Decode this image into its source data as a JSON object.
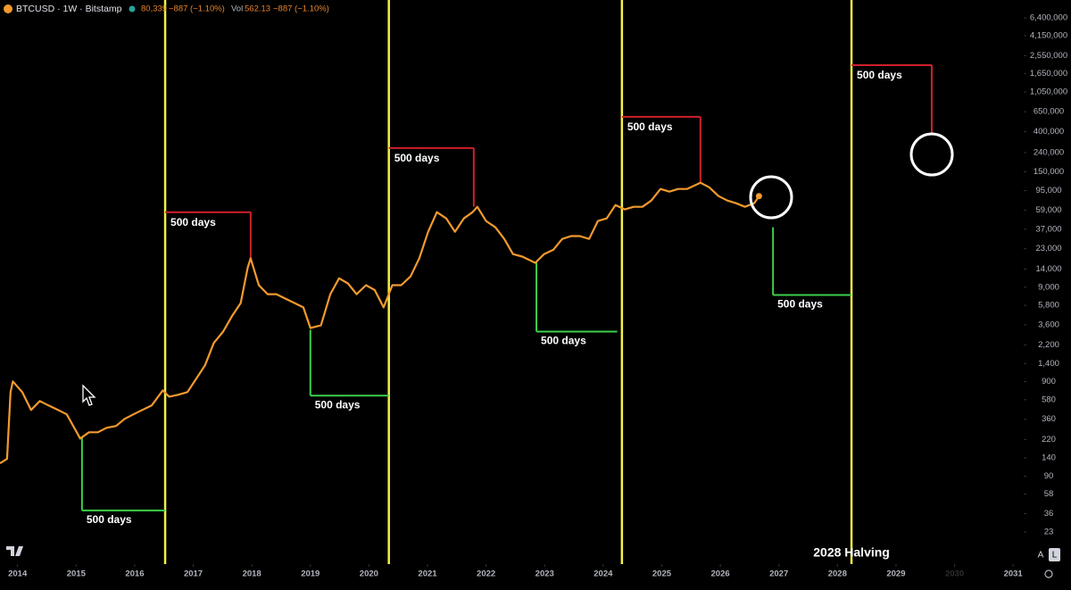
{
  "chart_data": {
    "type": "line",
    "header": {
      "symbol": "BTCUSD · 1W · Bitstamp",
      "price": "80,339",
      "change": "−887 (−1.10%)",
      "vol_label": "Vol",
      "volume": "562.13",
      "vol_change": "−887 (−1.10%)"
    },
    "log_scale": true,
    "color": "#f29a2e",
    "x": [
      2013.7,
      2013.82,
      2013.88,
      2013.92,
      2014.08,
      2014.23,
      2014.38,
      2014.53,
      2014.69,
      2014.84,
      2015.07,
      2015.22,
      2015.37,
      2015.52,
      2015.68,
      2015.83,
      2015.98,
      2016.13,
      2016.29,
      2016.48,
      2016.59,
      2016.74,
      2016.9,
      2017.05,
      2017.2,
      2017.35,
      2017.51,
      2017.66,
      2017.81,
      2017.93,
      2017.98,
      2018.12,
      2018.27,
      2018.42,
      2018.57,
      2018.73,
      2018.88,
      2019.0,
      2019.18,
      2019.34,
      2019.49,
      2019.64,
      2019.79,
      2019.95,
      2020.1,
      2020.25,
      2020.4,
      2020.55,
      2020.71,
      2020.86,
      2021.01,
      2021.16,
      2021.32,
      2021.47,
      2021.62,
      2021.77,
      2021.85,
      2022.0,
      2022.16,
      2022.31,
      2022.46,
      2022.62,
      2022.84,
      2022.99,
      2023.15,
      2023.3,
      2023.45,
      2023.6,
      2023.76,
      2023.91,
      2024.06,
      2024.21,
      2024.37,
      2024.52,
      2024.67,
      2024.82,
      2024.98,
      2025.13,
      2025.28,
      2025.43,
      2025.66,
      2025.81,
      2025.97,
      2026.12,
      2026.27,
      2026.42,
      2026.58,
      2026.66
    ],
    "values": [
      123,
      137,
      698,
      906,
      698,
      452,
      561,
      504,
      452,
      406,
      225,
      262,
      262,
      292,
      305,
      364,
      406,
      452,
      504,
      728,
      625,
      653,
      698,
      966,
      1340,
      2310,
      3050,
      4430,
      6120,
      14600,
      18200,
      9460,
      7600,
      7600,
      6820,
      6120,
      5500,
      3330,
      3560,
      7600,
      11200,
      9890,
      7600,
      9460,
      8400,
      5500,
      9460,
      9460,
      11700,
      18200,
      34800,
      56100,
      48200,
      34800,
      48200,
      56100,
      64000,
      45200,
      38800,
      29200,
      20200,
      19000,
      16300,
      20200,
      22500,
      29200,
      31300,
      31300,
      29200,
      45200,
      48200,
      66800,
      60000,
      64000,
      64000,
      74500,
      98900,
      92500,
      98900,
      98900,
      115000,
      103000,
      83000,
      74500,
      69800,
      64000,
      69800,
      83000
    ],
    "xlim": [
      2013.7,
      2031.15
    ],
    "xticks": [
      2014,
      2015,
      2016,
      2017,
      2018,
      2019,
      2020,
      2021,
      2022,
      2023,
      2024,
      2025,
      2026,
      2027,
      2028,
      2029,
      2030,
      2031
    ],
    "ylim": [
      11,
      9900000
    ],
    "yticks": [
      {
        "value": 6400000,
        "label": "6,400,000"
      },
      {
        "value": 4150000,
        "label": "4,150,000"
      },
      {
        "value": 2550000,
        "label": "2,550,000"
      },
      {
        "value": 1650000,
        "label": "1,650,000"
      },
      {
        "value": 1050000,
        "label": "1,050,000"
      },
      {
        "value": 650000,
        "label": "650,000"
      },
      {
        "value": 400000,
        "label": "400,000"
      },
      {
        "value": 240000,
        "label": "240,000"
      },
      {
        "value": 150000,
        "label": "150,000"
      },
      {
        "value": 95000,
        "label": "95,000"
      },
      {
        "value": 59000,
        "label": "59,000"
      },
      {
        "value": 37000,
        "label": "37,000"
      },
      {
        "value": 23000,
        "label": "23,000"
      },
      {
        "value": 14000,
        "label": "14,000"
      },
      {
        "value": 9000,
        "label": "9,000"
      },
      {
        "value": 5800,
        "label": "5,800"
      },
      {
        "value": 3600,
        "label": "3,600"
      },
      {
        "value": 2200,
        "label": "2,200"
      },
      {
        "value": 1400,
        "label": "1,400"
      },
      900,
      580,
      360,
      220,
      140,
      90,
      58,
      36,
      23
    ],
    "halvings": {
      "x": [
        2016.52,
        2020.34,
        2024.32,
        2028.24
      ],
      "color": "#f2ef4a"
    },
    "halving_label": "2028 Halving",
    "peak_brackets": {
      "color": "#d0202a",
      "items": [
        {
          "x_start": 2016.52,
          "x_end": 2017.98,
          "y_level": 56000,
          "y_end": 18200,
          "label": "500 days"
        },
        {
          "x_start": 2020.34,
          "x_end": 2021.79,
          "y_level": 268000,
          "y_end": 64000,
          "label": "500 days"
        },
        {
          "x_start": 2024.32,
          "x_end": 2025.66,
          "y_level": 574000,
          "y_end": 115000,
          "label": "500 days"
        },
        {
          "x_start": 2028.24,
          "x_end": 2029.61,
          "y_level": 2020000,
          "y_end": 380000,
          "label": "500 days"
        }
      ]
    },
    "bottom_brackets": {
      "color": "#3cd04a",
      "items": [
        {
          "x": 2015.1,
          "x_end": 2016.52,
          "y_top": 235,
          "y_bottom": 39,
          "label": "500 days"
        },
        {
          "x": 2019.0,
          "x_end": 2020.34,
          "y_top": 3190,
          "y_bottom": 640,
          "label": "500 days"
        },
        {
          "x": 2022.86,
          "x_end": 2024.24,
          "y_top": 17000,
          "y_bottom": 3050,
          "label": "500 days"
        },
        {
          "x": 2026.9,
          "x_end": 2028.24,
          "y_top": 38800,
          "y_bottom": 7450,
          "label": "500 days"
        }
      ]
    }
  },
  "controls": {
    "auto": "A",
    "log": "L"
  }
}
